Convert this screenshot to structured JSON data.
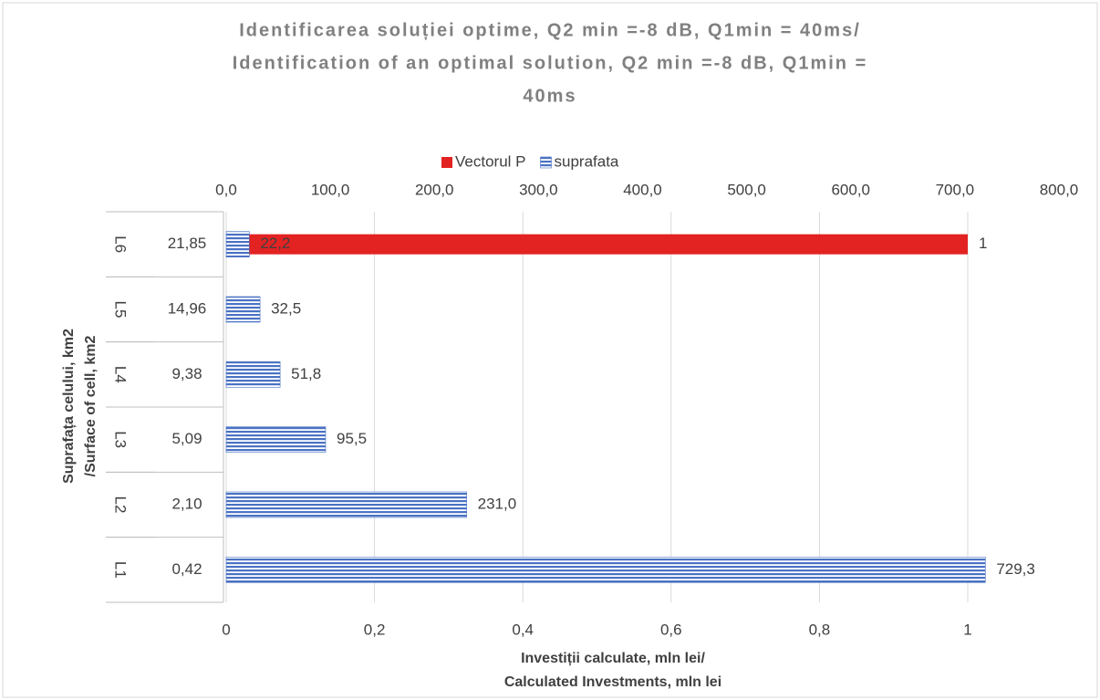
{
  "chart_data": {
    "type": "hbar",
    "title": [
      "Identificarea soluției optime, Q2 min =-8 dB, Q1min = 40ms/",
      "Identification of an optimal solution, Q2 min =-8 dB, Q1min =",
      "40ms"
    ],
    "categories": [
      "L1",
      "L2",
      "L3",
      "L4",
      "L5",
      "L6"
    ],
    "sublabels": [
      "0,42",
      "2,10",
      "5,09",
      "9,38",
      "14,96",
      "21,85"
    ],
    "series": [
      {
        "name": "Vectorul P",
        "color": "#e32222",
        "pattern": false,
        "axis": "x",
        "values": [
          null,
          null,
          null,
          null,
          null,
          1
        ]
      },
      {
        "name": "suprafata",
        "color": "#4a72c4",
        "pattern": true,
        "axis": "x2",
        "values": [
          729.3,
          231.0,
          95.5,
          51.8,
          32.5,
          22.2
        ],
        "value_labels": [
          "729,3",
          "231,0",
          "95,5",
          "51,8",
          "32,5",
          "22,2"
        ]
      }
    ],
    "xlim": [
      0,
      1.123
    ],
    "xticks": [
      0,
      {
        "value": 0.2,
        "label": "0,2"
      },
      {
        "value": 0.4,
        "label": "0,4"
      },
      {
        "value": 0.6,
        "label": "0,6"
      },
      {
        "value": 0.8,
        "label": "0,8"
      },
      1
    ],
    "x2lim": [
      0,
      800
    ],
    "x2ticks": [
      {
        "value": 0,
        "label": "0,0"
      },
      {
        "value": 100,
        "label": "100,0"
      },
      {
        "value": 200,
        "label": "200,0"
      },
      {
        "value": 300,
        "label": "300,0"
      },
      {
        "value": 400,
        "label": "400,0"
      },
      {
        "value": 500,
        "label": "500,0"
      },
      {
        "value": 600,
        "label": "600,0"
      },
      {
        "value": 700,
        "label": "700,0"
      },
      {
        "value": 800,
        "label": "800,0"
      }
    ],
    "xlabel": [
      "Investiții calculate, mln lei/",
      "Calculated Investments, mln lei"
    ],
    "ylabel": [
      "Suprafața celului, km2",
      "/Surface of cell, km2"
    ],
    "grid": true,
    "legend": "top"
  }
}
